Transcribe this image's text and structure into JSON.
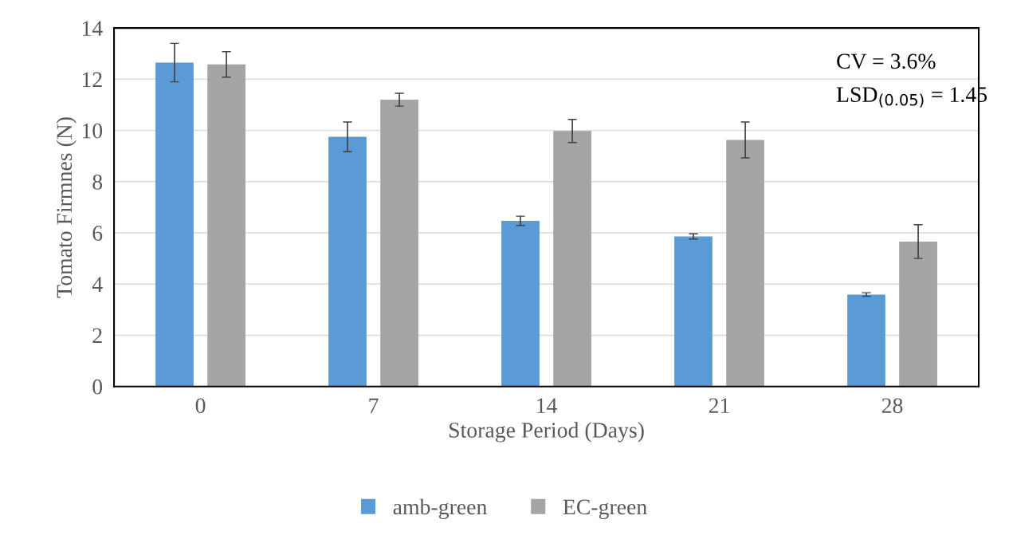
{
  "chart_data": {
    "type": "bar",
    "xlabel": "Storage Period (Days)",
    "ylabel": "Tomato Firmnes (N)",
    "categories": [
      "0",
      "7",
      "14",
      "21",
      "28"
    ],
    "series": [
      {
        "name": "amb-green",
        "color": "#5b9bd5",
        "values": [
          12.65,
          9.75,
          6.47,
          5.86,
          3.59
        ],
        "errors": [
          0.75,
          0.58,
          0.18,
          0.1,
          0.07
        ]
      },
      {
        "name": "EC-green",
        "color": "#a5a5a5",
        "values": [
          12.58,
          11.2,
          9.98,
          9.63,
          5.66
        ],
        "errors": [
          0.5,
          0.25,
          0.45,
          0.7,
          0.66
        ]
      }
    ],
    "ylim": [
      0,
      14
    ],
    "yticks": [
      0,
      2,
      4,
      6,
      8,
      10,
      12,
      14
    ],
    "grid": "y",
    "legend": "bottom",
    "annotations": [
      "CV = 3.6%",
      "LSD$_{(0.05)}$ = 1.45"
    ]
  }
}
